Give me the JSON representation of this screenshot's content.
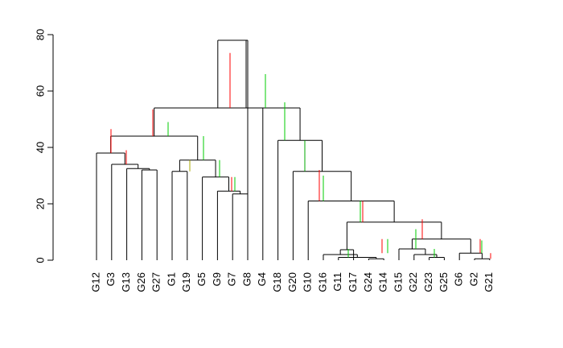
{
  "chart_data": {
    "type": "dendrogram",
    "title": "",
    "xlabel": "",
    "ylabel": "",
    "ylim": [
      0,
      80
    ],
    "yticks": [
      0,
      20,
      40,
      60,
      80
    ],
    "grid": false,
    "leaves": [
      "G12",
      "G3",
      "G13",
      "G26",
      "G27",
      "G1",
      "G19",
      "G5",
      "G9",
      "G7",
      "G8",
      "G4",
      "G18",
      "G20",
      "G10",
      "G16",
      "G11",
      "G17",
      "G24",
      "G14",
      "G15",
      "G22",
      "G23",
      "G25",
      "G6",
      "G2",
      "G21"
    ],
    "merges": [
      {
        "left": "G24",
        "right": "G14",
        "height": 0.5
      },
      {
        "left": "G11",
        "right": "m1",
        "height": 1
      },
      {
        "left": "G23",
        "right": "G25",
        "height": 1
      },
      {
        "left": "G2",
        "right": "G21",
        "height": 0.5
      },
      {
        "left": "G16",
        "right": "m2",
        "height": 2
      },
      {
        "left": "G22",
        "right": "m3",
        "height": 2
      },
      {
        "left": "G6",
        "right": "m4",
        "height": 2.5
      },
      {
        "left": "G17",
        "right": "m5",
        "height": 3.7
      },
      {
        "left": "G15",
        "right": "m6",
        "height": 4
      },
      {
        "left": "m9",
        "right": "m7",
        "height": 7.5
      },
      {
        "left": "m8",
        "right": "m10",
        "height": 13.5
      },
      {
        "left": "G10",
        "right": "m11",
        "height": 21
      },
      {
        "left": "G7",
        "right": "G8",
        "height": 23.5
      },
      {
        "left": "G9",
        "right": "m13",
        "height": 24.5
      },
      {
        "left": "G5",
        "right": "m14",
        "height": 29.5
      },
      {
        "left": "G1",
        "right": "G19",
        "height": 31.5
      },
      {
        "left": "G26",
        "right": "G27",
        "height": 32
      },
      {
        "left": "G20",
        "right": "m12",
        "height": 31.5
      },
      {
        "left": "G13",
        "right": "m17",
        "height": 32.5
      },
      {
        "left": "G3",
        "right": "m19",
        "height": 34
      },
      {
        "left": "m16",
        "right": "m15",
        "height": 35.5
      },
      {
        "left": "G12",
        "right": "m20",
        "height": 38
      },
      {
        "left": "G18",
        "right": "m18",
        "height": 42.5
      },
      {
        "left": "m22",
        "right": "m21",
        "height": 44
      },
      {
        "left": "G4",
        "right": "m23",
        "height": 54
      },
      {
        "left": "m24",
        "right": "m25",
        "height": 54
      },
      {
        "left": "m26",
        "right": "G8_root",
        "height": 78
      }
    ],
    "vertical_segments": [
      {
        "height_from": 54,
        "height_to": 78,
        "color": "#000000"
      },
      {
        "height_from": 54,
        "height_to": 73.5,
        "color": "#ff0000"
      },
      {
        "height_from": 54,
        "height_to": 66,
        "color": "#00cc00"
      },
      {
        "height_from": 44,
        "height_to": 53.5,
        "color": "#ff0000"
      },
      {
        "height_from": 44,
        "height_to": 49,
        "color": "#00cc00"
      },
      {
        "height_from": 42.5,
        "height_to": 56,
        "color": "#00cc00"
      },
      {
        "height_from": 38,
        "height_to": 46.5,
        "color": "#ff0000"
      },
      {
        "height_from": 35.5,
        "height_to": 44,
        "color": "#00cc00"
      },
      {
        "height_from": 34,
        "height_to": 39,
        "color": "#ff0000"
      },
      {
        "height_from": 29.5,
        "height_to": 35.5,
        "color": "#00cc00"
      },
      {
        "height_from": 21,
        "height_to": 32,
        "color": "#ff0000"
      },
      {
        "height_from": 21,
        "height_to": 30,
        "color": "#00cc00"
      },
      {
        "height_from": 13.5,
        "height_to": 21,
        "color": "#ff0000"
      },
      {
        "height_from": 13.5,
        "height_to": 21,
        "color": "#00cc00"
      },
      {
        "height_from": 7.5,
        "height_to": 14.5,
        "color": "#ff0000"
      },
      {
        "height_from": 4,
        "height_to": 11,
        "color": "#00cc00"
      },
      {
        "height_from": 2.5,
        "height_to": 7.5,
        "color": "#ff0000"
      },
      {
        "height_from": 2.5,
        "height_to": 7.5,
        "color": "#00cc00"
      }
    ]
  }
}
